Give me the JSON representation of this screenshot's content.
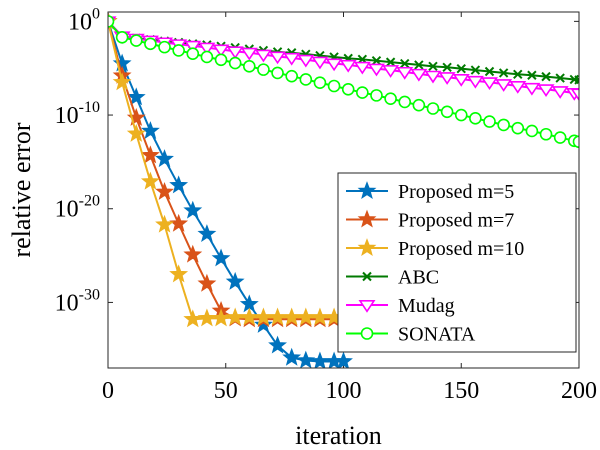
{
  "chart_data": {
    "type": "line",
    "title": "",
    "xlabel": "iteration",
    "ylabel": "relative error",
    "xlim": [
      0,
      200
    ],
    "ylim_log10": [
      -37,
      1
    ],
    "yscale": "log",
    "grid": false,
    "legend_position": "bottom-right",
    "x_ticks": [
      {
        "value": 0,
        "label": "0"
      },
      {
        "value": 50,
        "label": "50"
      },
      {
        "value": 100,
        "label": "100"
      },
      {
        "value": 150,
        "label": "150"
      },
      {
        "value": 200,
        "label": "200"
      }
    ],
    "y_ticks": [
      {
        "exp": 0,
        "base": "10",
        "sup": "0"
      },
      {
        "exp": -10,
        "base": "10",
        "sup": "-10"
      },
      {
        "exp": -20,
        "base": "10",
        "sup": "-20"
      },
      {
        "exp": -30,
        "base": "10",
        "sup": "-30"
      }
    ],
    "series": [
      {
        "name": "Proposed m=5",
        "color": "#0072BD",
        "marker": "star",
        "x": [
          0,
          6,
          12,
          18,
          24,
          30,
          36,
          42,
          48,
          54,
          60,
          66,
          72,
          78,
          84,
          90,
          96,
          100
        ],
        "log10_values": [
          0,
          -4.5,
          -8.1,
          -11.7,
          -14.7,
          -17.5,
          -20.2,
          -22.7,
          -25.3,
          -27.8,
          -30.2,
          -32.4,
          -34.6,
          -35.9,
          -36.2,
          -36.3,
          -36.3,
          -36.3
        ]
      },
      {
        "name": "Proposed m=7",
        "color": "#D95319",
        "marker": "star",
        "x": [
          0,
          6,
          12,
          18,
          24,
          30,
          36,
          42,
          48,
          54,
          60,
          66,
          72,
          78,
          84,
          90,
          96,
          100
        ],
        "log10_values": [
          0,
          -5.8,
          -10.3,
          -14.3,
          -18.2,
          -21.6,
          -24.9,
          -28.0,
          -30.9,
          -31.7,
          -31.8,
          -31.8,
          -31.8,
          -31.8,
          -31.8,
          -31.8,
          -31.8,
          -31.8
        ]
      },
      {
        "name": "Proposed m=10",
        "color": "#EDB120",
        "marker": "star",
        "x": [
          0,
          6,
          12,
          18,
          24,
          30,
          36,
          42,
          48,
          54,
          60,
          66,
          72,
          78,
          84,
          90,
          96,
          100
        ],
        "log10_values": [
          0,
          -6.5,
          -12.0,
          -17.1,
          -21.7,
          -27.0,
          -31.8,
          -31.7,
          -31.7,
          -31.6,
          -31.6,
          -31.6,
          -31.6,
          -31.6,
          -31.6,
          -31.6,
          -31.6,
          -31.6
        ]
      },
      {
        "name": "ABC",
        "color": "#007A00",
        "marker": "x",
        "x": [
          0,
          6,
          12,
          18,
          24,
          30,
          36,
          42,
          48,
          54,
          60,
          66,
          72,
          78,
          84,
          90,
          96,
          102,
          108,
          114,
          120,
          126,
          132,
          138,
          144,
          150,
          156,
          162,
          168,
          174,
          180,
          186,
          192,
          198,
          200
        ],
        "log10_values": [
          0,
          -1.6,
          -1.8,
          -1.95,
          -2.1,
          -2.25,
          -2.4,
          -2.5,
          -2.65,
          -2.8,
          -2.95,
          -3.1,
          -3.25,
          -3.35,
          -3.5,
          -3.65,
          -3.8,
          -3.95,
          -4.05,
          -4.2,
          -4.35,
          -4.5,
          -4.65,
          -4.8,
          -4.9,
          -5.05,
          -5.2,
          -5.35,
          -5.5,
          -5.65,
          -5.75,
          -5.9,
          -6.05,
          -6.2,
          -6.25
        ]
      },
      {
        "name": "Mudag",
        "color": "#FF00FF",
        "marker": "triangle-down",
        "x": [
          0,
          6,
          12,
          18,
          24,
          30,
          36,
          42,
          48,
          54,
          60,
          66,
          72,
          78,
          84,
          90,
          96,
          102,
          108,
          114,
          120,
          126,
          132,
          138,
          144,
          150,
          156,
          162,
          168,
          174,
          180,
          186,
          192,
          198,
          200
        ],
        "log10_values": [
          0,
          -1.6,
          -1.85,
          -2.05,
          -2.25,
          -2.45,
          -2.6,
          -2.8,
          -3.0,
          -3.2,
          -3.35,
          -3.55,
          -3.75,
          -3.9,
          -4.1,
          -4.3,
          -4.5,
          -4.65,
          -4.85,
          -5.05,
          -5.2,
          -5.4,
          -5.6,
          -5.8,
          -5.95,
          -6.15,
          -6.35,
          -6.5,
          -6.7,
          -6.9,
          -7.1,
          -7.25,
          -7.45,
          -7.65,
          -7.7
        ]
      },
      {
        "name": "SONATA",
        "color": "#00FF00",
        "marker": "circle",
        "x": [
          0,
          6,
          12,
          18,
          24,
          30,
          36,
          42,
          48,
          54,
          60,
          66,
          72,
          78,
          84,
          90,
          96,
          102,
          108,
          114,
          120,
          126,
          132,
          138,
          144,
          150,
          156,
          162,
          168,
          174,
          180,
          186,
          192,
          198,
          200
        ],
        "log10_values": [
          0,
          -1.7,
          -2.05,
          -2.4,
          -2.75,
          -3.1,
          -3.45,
          -3.8,
          -4.1,
          -4.45,
          -4.8,
          -5.15,
          -5.5,
          -5.85,
          -6.2,
          -6.55,
          -6.9,
          -7.25,
          -7.6,
          -7.9,
          -8.25,
          -8.6,
          -8.95,
          -9.3,
          -9.65,
          -10.0,
          -10.35,
          -10.7,
          -11.05,
          -11.4,
          -11.7,
          -12.05,
          -12.4,
          -12.75,
          -12.85
        ]
      }
    ]
  }
}
